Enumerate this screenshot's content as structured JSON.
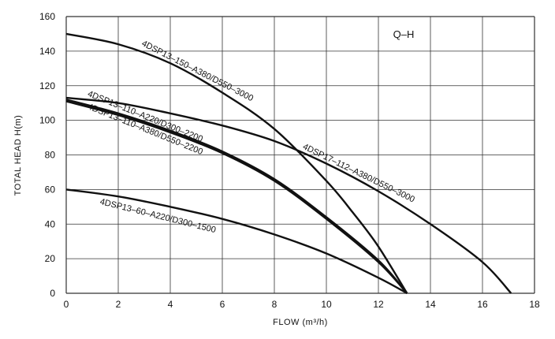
{
  "chart_data": {
    "type": "line",
    "title": "Q–H",
    "xlabel": "FLOW (m³/h)",
    "ylabel": "TOTAL HEAD  H(m)",
    "xlim": [
      0,
      18
    ],
    "ylim": [
      0,
      160
    ],
    "xticks": [
      "0",
      "2",
      "4",
      "6",
      "8",
      "10",
      "12",
      "14",
      "16",
      "18"
    ],
    "yticks": [
      "0",
      "20",
      "40",
      "60",
      "80",
      "100",
      "120",
      "140",
      "160"
    ],
    "grid": true,
    "series": [
      {
        "name": "4DSP13–150–A380/D550–3000",
        "x": [
          0,
          2,
          4,
          6,
          8,
          10,
          11,
          12,
          13.1
        ],
        "y": [
          150,
          144,
          133,
          116,
          95,
          65,
          47,
          27,
          0
        ]
      },
      {
        "name": "4DSP17–112–A380/D550–3000",
        "x": [
          0,
          2,
          4,
          6,
          8,
          10,
          12,
          14,
          16,
          17.1
        ],
        "y": [
          113,
          110,
          104,
          97,
          88,
          75,
          59,
          40,
          18,
          0
        ]
      },
      {
        "name": "4DSP13–110–A220/D300–2200",
        "x": [
          0,
          2,
          4,
          6,
          8,
          10,
          12,
          13.1
        ],
        "y": [
          112,
          104,
          94,
          82,
          66,
          44,
          19,
          0
        ]
      },
      {
        "name": "4DSP13–110–A380/D550–2200",
        "x": [
          0,
          2,
          4,
          6,
          8,
          10,
          12,
          13.1
        ],
        "y": [
          111,
          103,
          93,
          81,
          65,
          43,
          18,
          0
        ]
      },
      {
        "name": "4DSP13–60–A220/D300–1500",
        "x": [
          0,
          2,
          4,
          6,
          8,
          10,
          12,
          13.1
        ],
        "y": [
          60,
          56,
          50,
          43,
          34,
          23,
          9,
          0
        ]
      }
    ]
  }
}
